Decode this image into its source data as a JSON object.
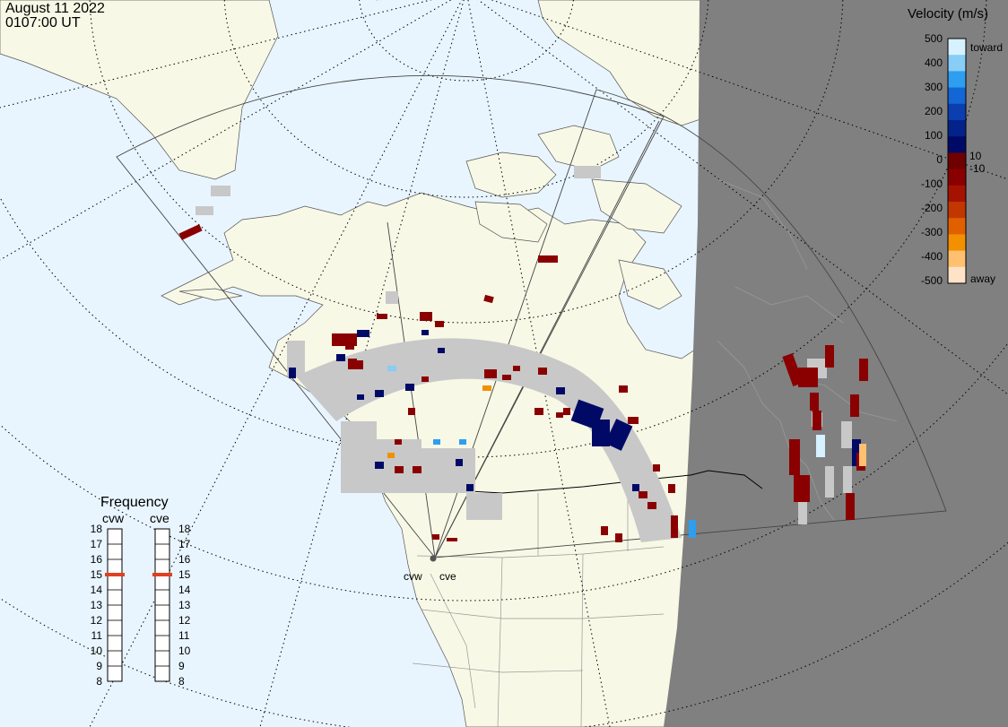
{
  "header": {
    "date": "August 11 2022",
    "time": "0107:00 UT"
  },
  "colorbar": {
    "title": "Velocity (m/s)",
    "toward_label": "toward",
    "away_label": "away",
    "ticks": [
      "500",
      "400",
      "300",
      "200",
      "100",
      "10",
      "0",
      "-10",
      "-100",
      "-200",
      "-300",
      "-400",
      "-500"
    ],
    "colors": [
      "#d6f1ff",
      "#87cdf6",
      "#2d9ef0",
      "#1266d6",
      "#0b3fb0",
      "#03238a",
      "#000a66",
      "#6e0000",
      "#8a0000",
      "#a61200",
      "#c23600",
      "#e06000",
      "#f29000",
      "#ffc070",
      "#ffe3c8"
    ]
  },
  "frequency": {
    "title": "Frequency",
    "radars": [
      {
        "name": "cvw",
        "value_mhz": 15
      },
      {
        "name": "cve",
        "value_mhz": 15
      }
    ],
    "scale": [
      "18",
      "17",
      "16",
      "15",
      "14",
      "13",
      "12",
      "11",
      "10",
      "9",
      "8"
    ],
    "marker_color": "#e04020"
  },
  "radar_sites": [
    {
      "name": "cvw"
    },
    {
      "name": "cve"
    }
  ],
  "map": {
    "ocean_color": "#e8f5ff",
    "land_color": "#f8f8e6",
    "night_color": "#808080",
    "ground_scatter_color": "#c8c8c8"
  }
}
